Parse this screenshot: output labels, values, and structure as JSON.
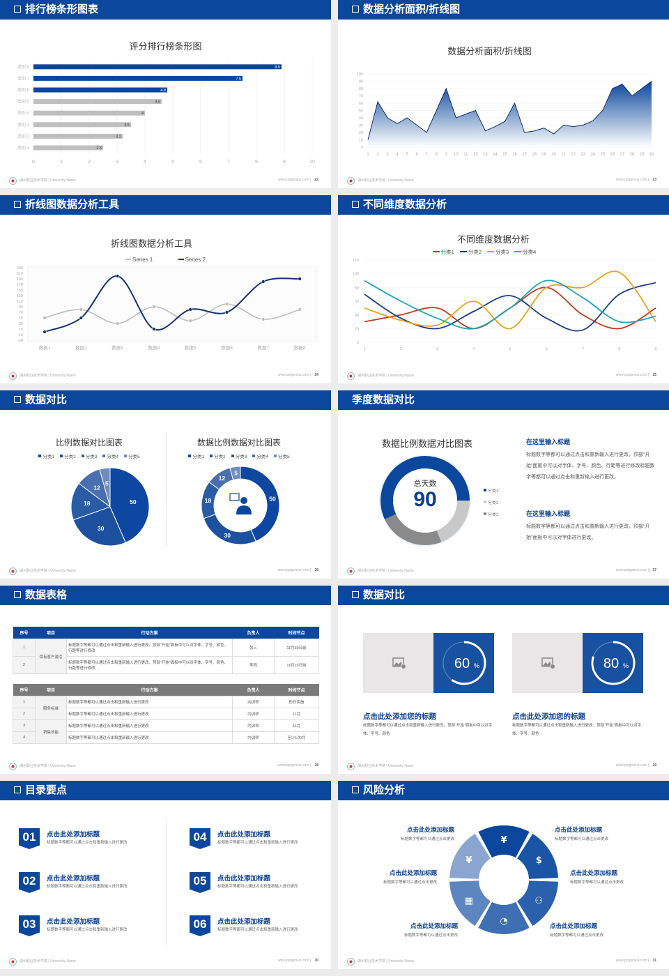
{
  "footer": {
    "school": "湖州职业技术学院 | University Name",
    "site": "www.pptgenius.com"
  },
  "colors": {
    "brand": "#0b479c",
    "header_text": "#ffffff",
    "heading_text": "#0b3f8f"
  },
  "slides": [
    {
      "header": "排行榜条形图表",
      "page": "22"
    },
    {
      "header": "数据分析面积/折线图",
      "page": "23"
    },
    {
      "header": "折线图数据分析工具",
      "page": "24"
    },
    {
      "header": "不同维度数据分析",
      "page": "25"
    },
    {
      "header": "数据对比",
      "page": "26"
    },
    {
      "header": "季度数据对比",
      "page": "27",
      "blocks": [
        {
          "title": "在这里输入标题",
          "text": "标题数字等都可以通过点击和重新输入进行更改，顶部“开始”面板中可以对字体、字号、颜色、行距等进行修改标题数字等都可以通过点击和重新输入进行更改。"
        },
        {
          "title": "在这里输入标题",
          "text": "标题数字等都可以通过点击和重新输入进行更改，顶部“开始”面板中可以对字体进行更改。"
        }
      ]
    },
    {
      "header": "数据表格",
      "page": "28",
      "table1": {
        "headers": [
          "序号",
          "项目",
          "行动方案",
          "负责人",
          "时间节点"
        ],
        "project": "保有客户激活",
        "rows": [
          {
            "no": "1",
            "action": "标题数字等都可以通过点击和重新输入进行更改，顶部“开始”面板中可以对字体、字号、颜色、行距等进行修改",
            "owner": "张三",
            "time": "11月30日前"
          },
          {
            "no": "2",
            "action": "标题数字等都可以通过点击和重新输入进行更改，顶部“开始”面板中可以对字体、字号、颜色、行距等进行修改",
            "owner": "李四",
            "time": "11月15日前"
          }
        ]
      },
      "table2": {
        "headers": [
          "序号",
          "项目",
          "行动方案",
          "负责人",
          "时间节点"
        ],
        "projects": [
          "服务标准",
          "销售技能"
        ],
        "rows": [
          {
            "no": "1",
            "action": "标题数字等都可以通过点击和重新输入进行更改",
            "owner": "内训师",
            "time": "即日实施"
          },
          {
            "no": "2",
            "action": "标题数字等都可以通过点击和重新输入进行更改",
            "owner": "内训师",
            "time": "11月"
          },
          {
            "no": "3",
            "action": "标题数字等都可以通过点击和重新输入进行更改",
            "owner": "内训师",
            "time": "11月"
          },
          {
            "no": "4",
            "action": "标题数字等都可以通过点击和重新输入进行更改",
            "owner": "内训师",
            "time": "至少1次/月"
          }
        ]
      }
    },
    {
      "header": "数据对比",
      "page": "29",
      "cards": [
        {
          "percent": 60,
          "value": "60",
          "unit": "%",
          "title": "点击此处添加您的标题",
          "text": "标题数字等都可以通过点击和重新输入进行更改，顶部“开始”面板中可以对字体、字号、颜色"
        },
        {
          "percent": 80,
          "value": "80",
          "unit": "%",
          "title": "点击此处添加您的标题",
          "text": "标题数字等都可以通过点击和重新输入进行更改，顶部“开始”面板中可以对字体、字号、颜色"
        }
      ]
    },
    {
      "header": "目录要点",
      "page": "30",
      "items": [
        {
          "num": "01",
          "title": "点击此处添加标题",
          "text": "标题数字等都可以通过点击和重新输入进行更改"
        },
        {
          "num": "02",
          "title": "点击此处添加标题",
          "text": "标题数字等都可以通过点击和重新输入进行更改"
        },
        {
          "num": "03",
          "title": "点击此处添加标题",
          "text": "标题数字等都可以通过点击和重新输入进行更改"
        },
        {
          "num": "04",
          "title": "点击此处添加标题",
          "text": "标题数字等都可以通过点击和重新输入进行更改"
        },
        {
          "num": "05",
          "title": "点击此处添加标题",
          "text": "标题数字等都可以通过点击和重新输入进行更改"
        },
        {
          "num": "06",
          "title": "点击此处添加标题",
          "text": "标题数字等都可以通过点击和重新输入进行更改"
        }
      ]
    },
    {
      "header": "风险分析",
      "page": "31",
      "items": [
        {
          "title": "点击此处添加标题",
          "text": "标题数字等都可以通过点击更改",
          "icon": "money-bag-icon"
        },
        {
          "title": "点击此处添加标题",
          "text": "标题数字等都可以通过点击更改",
          "icon": "coins-icon"
        },
        {
          "title": "点击此处添加标题",
          "text": "标题数字等都可以通过点击更改",
          "icon": "users-icon"
        },
        {
          "title": "点击此处添加标题",
          "text": "标题数字等都可以通过点击更改",
          "icon": "pie-chart-icon"
        },
        {
          "title": "点击此处添加标题",
          "text": "标题数字等都可以通过点击更改",
          "icon": "building-icon"
        },
        {
          "title": "点击此处添加标题",
          "text": "标题数字等都可以通过点击更改",
          "icon": "hand-money-icon"
        }
      ]
    }
  ],
  "chart_data": [
    {
      "type": "bar",
      "orientation": "horizontal",
      "title": "评分排行榜条形图",
      "categories": [
        "类别 1",
        "类别 2",
        "类别 3",
        "类别 4",
        "类别 5",
        "类别 6",
        "类别 7",
        "类别 8"
      ],
      "values": [
        2.5,
        3.2,
        3.5,
        4,
        4.6,
        4.8,
        7.5,
        8.9
      ],
      "value_labels": [
        "2.5",
        "3.2",
        "3.5",
        "4",
        "4.6",
        "4.8",
        "7.5",
        "8.9"
      ],
      "highlighted": [
        false,
        false,
        false,
        false,
        false,
        true,
        true,
        true
      ],
      "colors": {
        "highlight": "#0b479c",
        "normal": "#bfbfbf"
      },
      "xlim": [
        0,
        10
      ],
      "xticks": [
        "0",
        "1",
        "2",
        "3",
        "4",
        "5",
        "6",
        "7",
        "8",
        "9",
        "10"
      ],
      "grid": true
    },
    {
      "type": "area",
      "title": "数据分析面积/折线图",
      "x": [
        "1",
        "2",
        "3",
        "4",
        "5",
        "6",
        "7",
        "8",
        "9",
        "10",
        "11",
        "12",
        "13",
        "14",
        "15",
        "16",
        "17",
        "18",
        "19",
        "20",
        "21",
        "22",
        "23",
        "24",
        "25",
        "26",
        "27",
        "28",
        "29",
        "30"
      ],
      "values": [
        10,
        62,
        40,
        32,
        40,
        30,
        20,
        50,
        80,
        40,
        45,
        50,
        22,
        28,
        35,
        60,
        20,
        22,
        26,
        18,
        30,
        28,
        30,
        36,
        50,
        80,
        86,
        70,
        80,
        90
      ],
      "ylim": [
        0,
        100
      ],
      "yticks": [
        "0",
        "10",
        "20",
        "30",
        "40",
        "50",
        "60",
        "70",
        "80",
        "90",
        "100"
      ],
      "colors": {
        "fill": "#0b479c",
        "line": "#0d2d6b"
      }
    },
    {
      "type": "line",
      "smooth": true,
      "title": "折线图数据分析工具",
      "categories": [
        "数据1",
        "数据2",
        "数据3",
        "数据4",
        "数据5",
        "数据6",
        "数据7",
        "数据8"
      ],
      "series": [
        {
          "name": "Series 1",
          "values": [
            50,
            80,
            30,
            90,
            40,
            100,
            45,
            80
          ],
          "color": "#bdbdbd"
        },
        {
          "name": "Series 2",
          "values": [
            0,
            50,
            200,
            10,
            80,
            70,
            180,
            190
          ],
          "color": "#14306e"
        }
      ],
      "ylim": [
        -30,
        230
      ],
      "yticks": [
        "230",
        "210",
        "190",
        "170",
        "150",
        "130",
        "110",
        "90",
        "70",
        "50",
        "30",
        "10",
        "-10",
        "-30"
      ],
      "legend": "top"
    },
    {
      "type": "line",
      "smooth": true,
      "title": "不同维度数据分析",
      "x": [
        "1",
        "2",
        "3",
        "4",
        "5",
        "6",
        "7",
        "8",
        "9"
      ],
      "series": [
        {
          "name": "分类1",
          "values": [
            30,
            40,
            50,
            20,
            50,
            80,
            40,
            20,
            50
          ],
          "color": "#c0391b"
        },
        {
          "name": "分类2",
          "values": [
            70,
            35,
            20,
            45,
            68,
            35,
            18,
            70,
            87
          ],
          "color": "#1a3a8a"
        },
        {
          "name": "分类3",
          "values": [
            50,
            32,
            25,
            60,
            20,
            80,
            80,
            102,
            30
          ],
          "color": "#e8a317"
        },
        {
          "name": "分类4",
          "values": [
            90,
            60,
            35,
            20,
            50,
            90,
            65,
            30,
            38
          ],
          "color": "#1aa5c0"
        }
      ],
      "ylim": [
        0,
        120
      ],
      "yticks": [
        "0",
        "20",
        "40",
        "60",
        "80",
        "100",
        "120"
      ],
      "legend": "top"
    },
    {
      "type": "pie",
      "title": "比例数据对比图表",
      "categories": [
        "分类1",
        "分类2",
        "分类3",
        "分类4",
        "分类5"
      ],
      "values": [
        50,
        30,
        18,
        12,
        5
      ],
      "labels": [
        "50",
        "30",
        "18",
        "12",
        "5"
      ],
      "colors": [
        "#0d47a1",
        "#1e50a0",
        "#2a5ba5",
        "#4a6fae",
        "#6f8cc0"
      ],
      "legend": "top"
    },
    {
      "type": "pie",
      "donut": true,
      "title": "数据比例数据对比图表",
      "categories": [
        "分类1",
        "分类2",
        "分类3",
        "分类4",
        "分类5"
      ],
      "values": [
        50,
        30,
        18,
        12,
        5
      ],
      "labels": [
        "50",
        "30",
        "18",
        "12",
        "5"
      ],
      "colors": [
        "#0d47a1",
        "#1e50a0",
        "#2a5ba5",
        "#4a6fae",
        "#6f8cc0"
      ],
      "legend": "top",
      "center_icon": "user-support-icon"
    },
    {
      "type": "pie",
      "donut": true,
      "title": "数据比例数据对比图表",
      "center_label": "总天数",
      "center_value": "90",
      "categories": [
        "分类1",
        "分类2",
        "分类3"
      ],
      "values": [
        57,
        19,
        24
      ],
      "colors": [
        "#0b479c",
        "#c8c8c8",
        "#8a8a8a"
      ],
      "legend": "right"
    }
  ]
}
